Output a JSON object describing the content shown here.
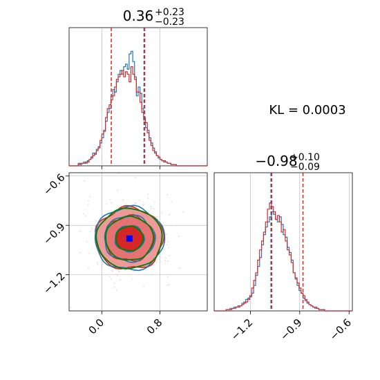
{
  "kl_label": "KL = 0.0003",
  "colors": {
    "blue": "#1f77b4",
    "red": "#d62728",
    "green": "#008000",
    "red_fill_light": "#ef9a9a",
    "marker": "#0000ff",
    "grid": "#b0b0b0"
  },
  "chart_data": [
    {
      "type": "histogram",
      "panel": "top-left",
      "title": {
        "main": "0.36",
        "sup": "+0.23",
        "sub": "−0.23"
      },
      "xlim": [
        -0.45,
        1.45
      ],
      "ylim": [
        0,
        1.0
      ],
      "grid": true,
      "vlines_dashed_red": [
        0.13,
        0.59
      ],
      "vline_dashed_blue": 0.58,
      "bins_x_start": -0.45,
      "bin_width": 0.025,
      "series": [
        {
          "name": "",
          "color": "blue",
          "counts": [
            0,
            0,
            0,
            0,
            0,
            0.02,
            0.01,
            0.02,
            0.03,
            0.02,
            0.04,
            0.05,
            0.06,
            0.1,
            0.09,
            0.13,
            0.14,
            0.18,
            0.22,
            0.27,
            0.35,
            0.42,
            0.45,
            0.55,
            0.6,
            0.58,
            0.66,
            0.72,
            0.75,
            0.72,
            0.78,
            0.8,
            0.76,
            0.88,
            0.9,
            0.82,
            0.7,
            0.55,
            0.62,
            0.57,
            0.45,
            0.38,
            0.3,
            0.28,
            0.22,
            0.18,
            0.14,
            0.1,
            0.08,
            0.06,
            0.05,
            0.04,
            0.03,
            0.03,
            0.02,
            0.02,
            0.01,
            0.01,
            0.01,
            0,
            0,
            0,
            0,
            0,
            0,
            0,
            0,
            0,
            0,
            0,
            0,
            0,
            0,
            0,
            0,
            0
          ]
        },
        {
          "name": "",
          "color": "red",
          "counts": [
            0,
            0,
            0,
            0,
            0,
            0.01,
            0.02,
            0.02,
            0.02,
            0.03,
            0.03,
            0.05,
            0.07,
            0.08,
            0.1,
            0.12,
            0.15,
            0.2,
            0.25,
            0.28,
            0.38,
            0.45,
            0.48,
            0.52,
            0.55,
            0.62,
            0.68,
            0.7,
            0.72,
            0.75,
            0.7,
            0.74,
            0.72,
            0.66,
            0.78,
            0.72,
            0.68,
            0.58,
            0.58,
            0.5,
            0.42,
            0.36,
            0.34,
            0.26,
            0.2,
            0.16,
            0.12,
            0.11,
            0.08,
            0.07,
            0.05,
            0.04,
            0.04,
            0.03,
            0.02,
            0.02,
            0.01,
            0.01,
            0.01,
            0,
            0,
            0,
            0,
            0,
            0,
            0,
            0,
            0,
            0,
            0,
            0,
            0,
            0,
            0,
            0,
            0
          ]
        }
      ]
    },
    {
      "type": "histogram",
      "panel": "bottom-right",
      "title": {
        "main": "−0.98",
        "sup": "+0.10",
        "sub": "−0.09"
      },
      "xlim": [
        -1.42,
        -0.58
      ],
      "ylim": [
        0,
        1.0
      ],
      "grid": true,
      "xticks": [
        -1.2,
        -0.9,
        -0.6
      ],
      "xtick_labels": [
        "−1.2",
        "−0.9",
        "−0.6"
      ],
      "vlines_dashed_red": [
        -1.07,
        -0.88
      ],
      "vline_dashed_blue": -1.075,
      "bins_x_start": -1.42,
      "bin_width": 0.012,
      "series": [
        {
          "name": "",
          "color": "blue",
          "counts": [
            0,
            0,
            0,
            0,
            0,
            0,
            0.01,
            0.01,
            0.02,
            0.02,
            0.03,
            0.03,
            0.04,
            0.04,
            0.06,
            0.07,
            0.09,
            0.1,
            0.11,
            0.14,
            0.2,
            0.28,
            0.35,
            0.42,
            0.52,
            0.6,
            0.66,
            0.7,
            0.74,
            0.78,
            0.76,
            0.72,
            0.7,
            0.74,
            0.68,
            0.6,
            0.58,
            0.5,
            0.46,
            0.4,
            0.3,
            0.25,
            0.2,
            0.16,
            0.14,
            0.1,
            0.08,
            0.06,
            0.05,
            0.04,
            0.03,
            0.02,
            0.02,
            0.01,
            0.01,
            0.01,
            0,
            0,
            0,
            0,
            0,
            0,
            0,
            0,
            0,
            0,
            0,
            0,
            0,
            0
          ]
        },
        {
          "name": "",
          "color": "red",
          "counts": [
            0,
            0,
            0,
            0,
            0,
            0,
            0.01,
            0.01,
            0.01,
            0.02,
            0.02,
            0.03,
            0.03,
            0.04,
            0.05,
            0.06,
            0.07,
            0.09,
            0.12,
            0.18,
            0.24,
            0.3,
            0.4,
            0.48,
            0.55,
            0.62,
            0.7,
            0.8,
            0.85,
            0.82,
            0.78,
            0.72,
            0.75,
            0.7,
            0.62,
            0.64,
            0.55,
            0.48,
            0.44,
            0.38,
            0.3,
            0.26,
            0.22,
            0.18,
            0.14,
            0.12,
            0.09,
            0.07,
            0.05,
            0.04,
            0.03,
            0.03,
            0.02,
            0.01,
            0.01,
            0.01,
            0,
            0,
            0,
            0,
            0,
            0,
            0,
            0,
            0,
            0,
            0,
            0,
            0,
            0
          ]
        }
      ]
    },
    {
      "type": "contour",
      "panel": "bottom-left",
      "xlim": [
        -0.45,
        1.45
      ],
      "ylim": [
        -1.42,
        -0.58
      ],
      "grid": true,
      "xticks": [
        0.0,
        0.8
      ],
      "xtick_labels": [
        "0.0",
        "0.8"
      ],
      "yticks": [
        -0.6,
        -0.9,
        -1.2
      ],
      "ytick_labels": [
        "−0.6",
        "−0.9",
        "−1.2"
      ],
      "center": [
        0.38,
        -0.98
      ],
      "marker_color": "marker",
      "contour_levels_sigma_x": [
        0.23,
        0.4,
        0.55
      ],
      "contour_levels_sigma_y": [
        0.09,
        0.16,
        0.22
      ],
      "series": [
        {
          "name": "",
          "color": "blue"
        },
        {
          "name": "",
          "color": "red",
          "filled": true
        },
        {
          "name": "",
          "color": "green"
        }
      ]
    }
  ]
}
